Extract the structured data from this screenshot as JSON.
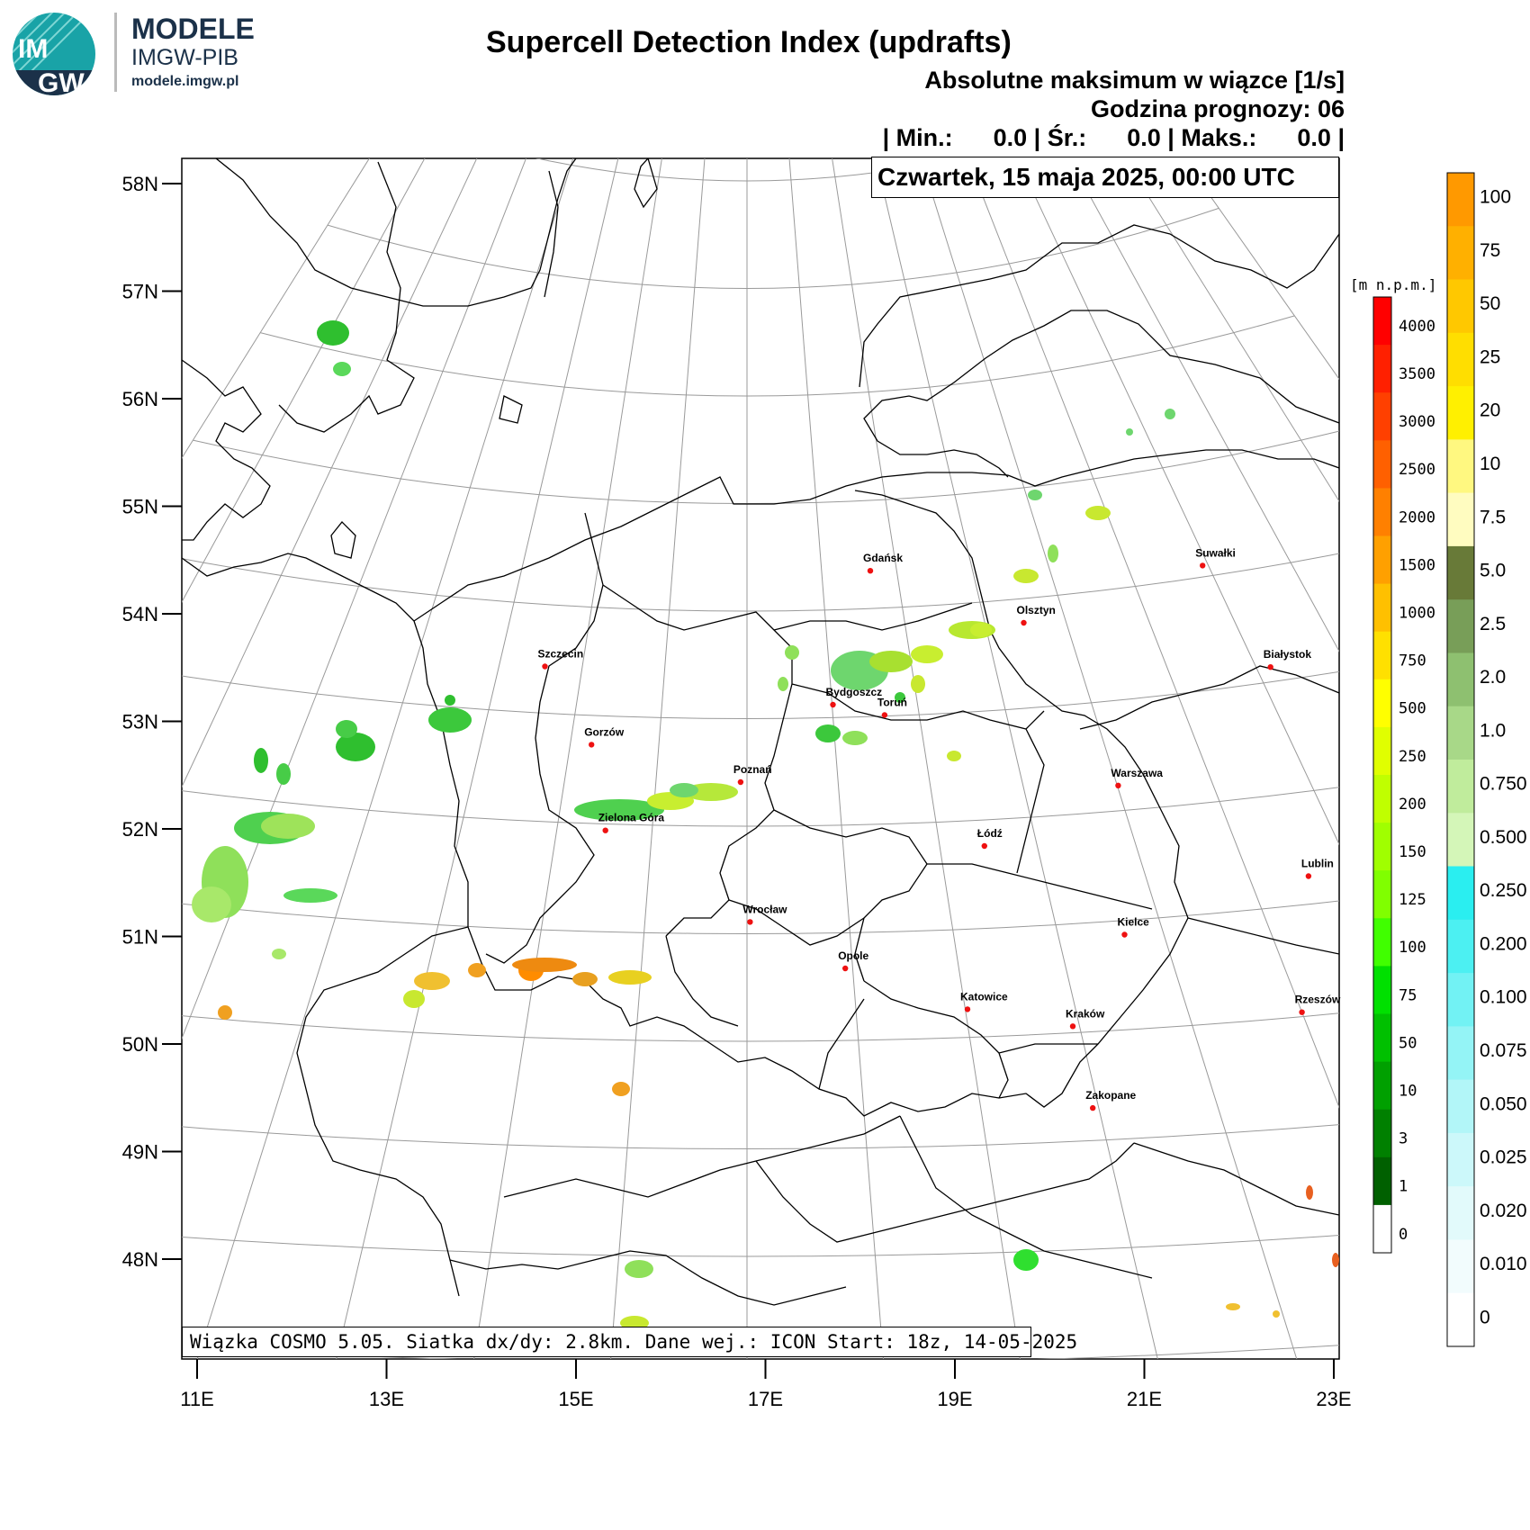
{
  "branding": {
    "logo_text_top": "IM",
    "logo_text_bottom": "GW",
    "title": "MODELE",
    "subtitle": "IMGW-PIB",
    "url": "modele.imgw.pl"
  },
  "map": {
    "title": "Supercell Detection Index (updrafts)",
    "variable": "Absolutne maksimum w wiązce [1/s]",
    "forecast_hour": "Godzina prognozy: 06",
    "stats": "| Min.:      0.0 | Śr.:      0.0 | Maks.:      0.0 |",
    "valid_time": "Czwartek, 15 maja 2025, 00:00 UTC",
    "model_info": "Wiązka COSMO 5.05. Siatka dx/dy: 2.8km. Dane wej.: ICON Start: 18z, 14-05-2025",
    "lat_labels": [
      "58N",
      "57N",
      "56N",
      "55N",
      "54N",
      "53N",
      "52N",
      "51N",
      "50N",
      "49N",
      "48N"
    ],
    "lon_labels": [
      "11E",
      "13E",
      "15E",
      "17E",
      "19E",
      "21E",
      "23E"
    ],
    "cities": [
      {
        "name": "Gdańsk",
        "lon": 18.65,
        "lat": 54.35
      },
      {
        "name": "Suwałki",
        "lon": 22.93,
        "lat": 54.1
      },
      {
        "name": "Olsztyn",
        "lon": 20.48,
        "lat": 53.78
      },
      {
        "name": "Białystok",
        "lon": 23.16,
        "lat": 53.13
      },
      {
        "name": "Szczecin",
        "lon": 14.55,
        "lat": 53.43
      },
      {
        "name": "Bydgoszcz",
        "lon": 18.01,
        "lat": 53.12
      },
      {
        "name": "Toruń",
        "lon": 18.6,
        "lat": 53.01
      },
      {
        "name": "Gorzów",
        "lon": 15.24,
        "lat": 52.73
      },
      {
        "name": "Poznań",
        "lon": 16.93,
        "lat": 52.41
      },
      {
        "name": "Warszawa",
        "lon": 21.01,
        "lat": 52.23
      },
      {
        "name": "Zielona Góra",
        "lon": 15.51,
        "lat": 51.94
      },
      {
        "name": "Łódź",
        "lon": 19.46,
        "lat": 51.76
      },
      {
        "name": "Lublin",
        "lon": 22.57,
        "lat": 51.25
      },
      {
        "name": "Wrocław",
        "lon": 17.03,
        "lat": 51.11
      },
      {
        "name": "Kielce",
        "lon": 20.63,
        "lat": 50.87
      },
      {
        "name": "Opole",
        "lon": 17.93,
        "lat": 50.67
      },
      {
        "name": "Rzeszów",
        "lon": 22.0,
        "lat": 50.04
      },
      {
        "name": "Katowice",
        "lon": 19.02,
        "lat": 50.26
      },
      {
        "name": "Kraków",
        "lon": 19.94,
        "lat": 50.06
      },
      {
        "name": "Zakopane",
        "lon": 19.95,
        "lat": 49.3
      }
    ]
  },
  "terrain_scale": {
    "title": "[m n.p.m.]",
    "labels": [
      "4000",
      "3500",
      "3000",
      "2500",
      "2000",
      "1500",
      "1000",
      "750",
      "500",
      "250",
      "200",
      "150",
      "125",
      "100",
      "75",
      "50",
      "10",
      "3",
      "1",
      "0"
    ],
    "colors": [
      "#ff0000",
      "#ff2000",
      "#ff4000",
      "#ff6000",
      "#ff8000",
      "#ffa000",
      "#ffc000",
      "#ffe000",
      "#ffff00",
      "#e0ff00",
      "#c0ff00",
      "#a0ff00",
      "#80ff00",
      "#40ff00",
      "#00e000",
      "#00c000",
      "#00a000",
      "#008000",
      "#006000",
      "#ffffff"
    ]
  },
  "value_scale": {
    "labels": [
      "100",
      "75",
      "50",
      "25",
      "20",
      "10",
      "7.5",
      "5.0",
      "2.5",
      "2.0",
      "1.0",
      "0.750",
      "0.500",
      "0.250",
      "0.200",
      "0.100",
      "0.075",
      "0.050",
      "0.025",
      "0.020",
      "0.010",
      "0"
    ],
    "colors": [
      "#ff9900",
      "#ffb000",
      "#ffc800",
      "#ffde00",
      "#fff000",
      "#fff880",
      "#fffcc0",
      "#687a38",
      "#789e58",
      "#8ec070",
      "#a8d888",
      "#c0ec9c",
      "#d4f6b8",
      "#2aeef0",
      "#4cf0f2",
      "#72f2f4",
      "#94f4f6",
      "#b2f6f8",
      "#ccf8fa",
      "#e2fafb",
      "#f2fcfd",
      "#ffffff"
    ]
  }
}
